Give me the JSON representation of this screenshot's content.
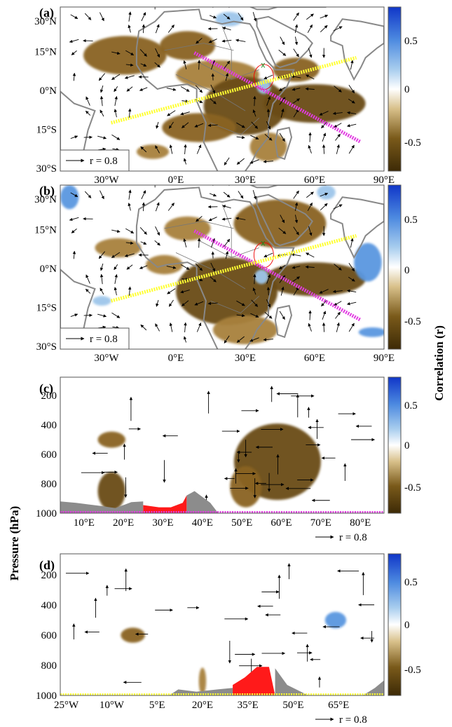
{
  "colors": {
    "negative": "#7a5a1a",
    "negative_light": "#c4a060",
    "positive": "#1f5fd8",
    "positive_light": "#9ec6ea",
    "topography": "#8c8c8c",
    "highlands": "#ff1a1a",
    "pink_line": "#e23be2",
    "yellow_line": "#ffff33",
    "coast": "#888888"
  },
  "colorbar": {
    "label": "Correlation (r)",
    "ticks": [
      "0.5",
      "0",
      "-0.5"
    ],
    "range": [
      -0.8,
      0.8
    ]
  },
  "ylabel_shared": "Pressure (hPa)",
  "chart_data": [
    {
      "type": "heatmap",
      "panel": "(a)",
      "x_ticks": [
        "30°W",
        "0°E",
        "30°E",
        "60°E",
        "90°E"
      ],
      "y_ticks": [
        "30°N",
        "15°N",
        "0°N",
        "15°S",
        "30°S"
      ],
      "xlim": [
        -50,
        90
      ],
      "ylim": [
        -30,
        38
      ],
      "legend_label": "r = 0.8",
      "lines": [
        {
          "name": "pink",
          "from": [
            8,
            19
          ],
          "to": [
            80,
            -18
          ]
        },
        {
          "name": "yellow",
          "from": [
            -28,
            -10
          ],
          "to": [
            78,
            17
          ]
        }
      ],
      "negative_patches": [
        {
          "lon": -22,
          "lat": 18,
          "rx": 18,
          "ry": 8,
          "r": -0.55
        },
        {
          "lon": 5,
          "lat": 22,
          "rx": 12,
          "ry": 6,
          "r": -0.5
        },
        {
          "lon": 18,
          "lat": 10,
          "rx": 18,
          "ry": 6,
          "r": -0.45
        },
        {
          "lon": 30,
          "lat": -3,
          "rx": 18,
          "ry": 12,
          "r": -0.6
        },
        {
          "lon": 10,
          "lat": -12,
          "rx": 16,
          "ry": 6,
          "r": -0.5
        },
        {
          "lon": 60,
          "lat": -2,
          "rx": 22,
          "ry": 8,
          "r": -0.7
        },
        {
          "lon": 52,
          "lat": 12,
          "rx": 10,
          "ry": 5,
          "r": -0.5
        },
        {
          "lon": -10,
          "lat": -22,
          "rx": 7,
          "ry": 3,
          "r": -0.4
        },
        {
          "lon": 40,
          "lat": -20,
          "rx": 8,
          "ry": 6,
          "r": -0.4
        }
      ],
      "positive_patches": [
        {
          "lon": 23,
          "lat": 33,
          "rx": 6,
          "ry": 3,
          "r": 0.4
        },
        {
          "lon": 38,
          "lat": 5,
          "rx": 3,
          "ry": 3,
          "r": 0.3
        }
      ]
    },
    {
      "type": "heatmap",
      "panel": "(b)",
      "x_ticks": [
        "30°W",
        "0°E",
        "30°E",
        "60°E",
        "90°E"
      ],
      "y_ticks": [
        "30°N",
        "15°N",
        "0°N",
        "15°S",
        "30°S"
      ],
      "xlim": [
        -50,
        90
      ],
      "ylim": [
        -30,
        38
      ],
      "legend_label": "r = 0.8",
      "lines": [
        {
          "name": "pink",
          "from": [
            8,
            19
          ],
          "to": [
            80,
            -18
          ]
        },
        {
          "name": "yellow",
          "from": [
            -28,
            -10
          ],
          "to": [
            78,
            17
          ]
        }
      ],
      "negative_patches": [
        {
          "lon": 45,
          "lat": 22,
          "rx": 20,
          "ry": 10,
          "r": -0.55
        },
        {
          "lon": -25,
          "lat": 12,
          "rx": 10,
          "ry": 4,
          "r": -0.45
        },
        {
          "lon": 5,
          "lat": 20,
          "rx": 10,
          "ry": 5,
          "r": -0.45
        },
        {
          "lon": 22,
          "lat": -6,
          "rx": 22,
          "ry": 14,
          "r": -0.6
        },
        {
          "lon": 30,
          "lat": -22,
          "rx": 14,
          "ry": 6,
          "r": -0.45
        },
        {
          "lon": 60,
          "lat": -1,
          "rx": 22,
          "ry": 7,
          "r": -0.7
        },
        {
          "lon": -5,
          "lat": 5,
          "rx": 8,
          "ry": 4,
          "r": -0.4
        }
      ],
      "positive_patches": [
        {
          "lon": -46,
          "lat": 33,
          "rx": 4,
          "ry": 5,
          "r": 0.5
        },
        {
          "lon": -32,
          "lat": -10,
          "rx": 4,
          "ry": 2,
          "r": 0.35
        },
        {
          "lon": 83,
          "lat": 6,
          "rx": 6,
          "ry": 8,
          "r": 0.45
        },
        {
          "lon": 85,
          "lat": -23,
          "rx": 6,
          "ry": 2,
          "r": 0.5
        },
        {
          "lon": 65,
          "lat": 35,
          "rx": 4,
          "ry": 3,
          "r": 0.3
        },
        {
          "lon": 37,
          "lat": 0,
          "rx": 3,
          "ry": 3,
          "r": 0.3
        }
      ]
    },
    {
      "type": "heatmap",
      "panel": "(c)",
      "x_ticks": [
        "10°E",
        "20°E",
        "30°E",
        "40°E",
        "50°E",
        "60°E",
        "70°E",
        "80°E"
      ],
      "y_ticks": [
        "200",
        "400",
        "600",
        "800",
        "1000"
      ],
      "xlim": [
        4,
        86
      ],
      "ylim": [
        1000,
        75
      ],
      "legend_label": "r = 0.8",
      "negative_patches": [
        {
          "x": 59,
          "p": 650,
          "rx": 11,
          "ry": 260,
          "r": -0.7
        },
        {
          "x": 17,
          "p": 850,
          "rx": 3.5,
          "ry": 130,
          "r": -0.6
        },
        {
          "x": 17,
          "p": 500,
          "rx": 3.5,
          "ry": 55,
          "r": -0.55
        },
        {
          "x": 51,
          "p": 820,
          "rx": 4,
          "ry": 140,
          "r": -0.55
        }
      ],
      "positive_patches": [],
      "topography": [
        [
          4,
          920
        ],
        [
          8,
          930
        ],
        [
          14,
          950
        ],
        [
          18,
          965
        ],
        [
          22,
          925
        ],
        [
          25,
          920
        ]
      ],
      "highlands": [
        [
          25,
          1000
        ],
        [
          25,
          945
        ],
        [
          29,
          960
        ],
        [
          32,
          960
        ],
        [
          35,
          930
        ],
        [
          36,
          880
        ],
        [
          36,
          1000
        ]
      ],
      "topography_right": [
        [
          36,
          880
        ],
        [
          38,
          850
        ],
        [
          42,
          930
        ],
        [
          44,
          1000
        ]
      ],
      "baseline_color": "pink_line"
    },
    {
      "type": "heatmap",
      "panel": "(d)",
      "x_ticks": [
        "25°W",
        "10°W",
        "5°E",
        "20°E",
        "35°E",
        "50°E",
        "65°E"
      ],
      "y_ticks": [
        "200",
        "400",
        "600",
        "800",
        "1000"
      ],
      "xlim": [
        -27,
        80
      ],
      "ylim": [
        1000,
        60
      ],
      "legend_label": "r = 0.8",
      "negative_patches": [
        {
          "x": -3,
          "p": 600,
          "rx": 4,
          "ry": 50,
          "r": -0.55
        },
        {
          "x": 20,
          "p": 905,
          "rx": 1.2,
          "ry": 90,
          "r": -0.45
        }
      ],
      "positive_patches": [
        {
          "x": 64,
          "p": 500,
          "rx": 3.5,
          "ry": 55,
          "r": 0.45
        }
      ],
      "topography": [
        [
          9,
          1000
        ],
        [
          12,
          960
        ],
        [
          18,
          975
        ],
        [
          25,
          960
        ],
        [
          30,
          950
        ]
      ],
      "highlands": [
        [
          30,
          1000
        ],
        [
          30,
          930
        ],
        [
          34,
          880
        ],
        [
          38,
          810
        ],
        [
          42,
          810
        ],
        [
          44,
          1000
        ]
      ],
      "topography_right": [
        [
          44,
          820
        ],
        [
          48,
          930
        ],
        [
          55,
          1000
        ]
      ],
      "topography_far": [
        [
          73,
          1000
        ],
        [
          77,
          950
        ],
        [
          80,
          900
        ],
        [
          80,
          1000
        ]
      ],
      "baseline_color": "yellow_line"
    }
  ]
}
